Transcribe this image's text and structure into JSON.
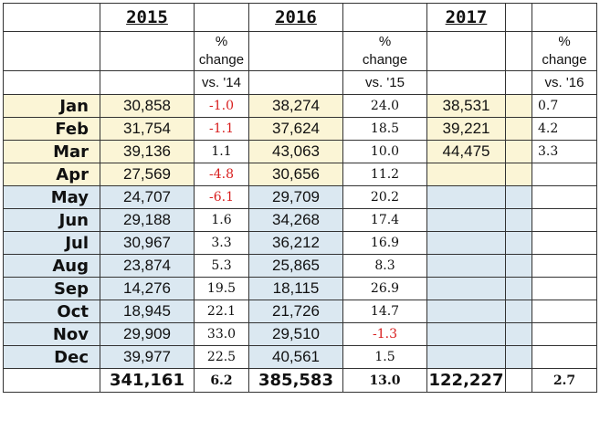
{
  "header": {
    "years": [
      "2015",
      "2016",
      "2017"
    ],
    "pct_label": "%",
    "change_label": "change",
    "vs_labels": [
      "vs. '14",
      "vs. '15",
      "vs. '16"
    ]
  },
  "months": [
    {
      "name": "Jan",
      "v2015": "30,858",
      "c2015": "-1.0",
      "v2016": "38,274",
      "c2016": "24.0",
      "v2017": "38,531",
      "c2017": "0.7"
    },
    {
      "name": "Feb",
      "v2015": "31,754",
      "c2015": "-1.1",
      "v2016": "37,624",
      "c2016": "18.5",
      "v2017": "39,221",
      "c2017": "4.2"
    },
    {
      "name": "Mar",
      "v2015": "39,136",
      "c2015": "1.1",
      "v2016": "43,063",
      "c2016": "10.0",
      "v2017": "44,475",
      "c2017": "3.3"
    },
    {
      "name": "Apr",
      "v2015": "27,569",
      "c2015": "-4.8",
      "v2016": "30,656",
      "c2016": "11.2",
      "v2017": "",
      "c2017": ""
    },
    {
      "name": "May",
      "v2015": "24,707",
      "c2015": "-6.1",
      "v2016": "29,709",
      "c2016": "20.2",
      "v2017": "",
      "c2017": ""
    },
    {
      "name": "Jun",
      "v2015": "29,188",
      "c2015": "1.6",
      "v2016": "34,268",
      "c2016": "17.4",
      "v2017": "",
      "c2017": ""
    },
    {
      "name": "Jul",
      "v2015": "30,967",
      "c2015": "3.3",
      "v2016": "36,212",
      "c2016": "16.9",
      "v2017": "",
      "c2017": ""
    },
    {
      "name": "Aug",
      "v2015": "23,874",
      "c2015": "5.3",
      "v2016": "25,865",
      "c2016": "8.3",
      "v2017": "",
      "c2017": ""
    },
    {
      "name": "Sep",
      "v2015": "14,276",
      "c2015": "19.5",
      "v2016": "18,115",
      "c2016": "26.9",
      "v2017": "",
      "c2017": ""
    },
    {
      "name": "Oct",
      "v2015": "18,945",
      "c2015": "22.1",
      "v2016": "21,726",
      "c2016": "14.7",
      "v2017": "",
      "c2017": ""
    },
    {
      "name": "Nov",
      "v2015": "29,909",
      "c2015": "33.0",
      "v2016": "29,510",
      "c2016": "-1.3",
      "v2017": "",
      "c2017": ""
    },
    {
      "name": "Dec",
      "v2015": "39,977",
      "c2015": "22.5",
      "v2016": "40,561",
      "c2016": "1.5",
      "v2017": "",
      "c2017": ""
    }
  ],
  "totals": {
    "v2015": "341,161",
    "c2015": "6.2",
    "v2016": "385,583",
    "c2016": "13.0",
    "v2017": "122,227",
    "c2017": "2.7"
  },
  "colors": {
    "yellow_fill": "#fbf5d6",
    "blue_fill": "#dbe8f1",
    "negative": "#d81e1e"
  },
  "highlight": {
    "yellow_months": [
      "Jan",
      "Feb",
      "Mar",
      "Apr"
    ],
    "blue_months": [
      "May",
      "Jun",
      "Jul",
      "Aug",
      "Sep",
      "Oct",
      "Nov",
      "Dec"
    ]
  }
}
